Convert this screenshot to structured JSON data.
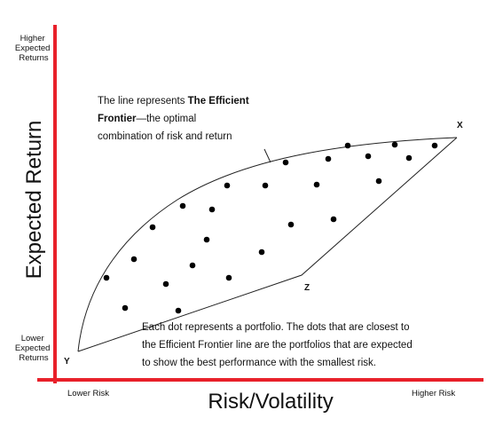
{
  "axes": {
    "y_title": "Expected Return",
    "y_top_label": [
      "Higher",
      "Expected",
      "Returns"
    ],
    "y_bottom_label": [
      "Lower",
      "Expected",
      "Returns"
    ],
    "x_title": "Risk/Volatility",
    "x_left_label": "Lower Risk",
    "x_right_label": "Higher Risk"
  },
  "points": {
    "x": "X",
    "y": "Y",
    "z": "Z"
  },
  "frontier_note": {
    "line1_plain": "The line represents ",
    "line1_bold": "The Efficient",
    "line2_bold": "Frontier",
    "line2_plain": "—the optimal",
    "line3": "combination of risk and return"
  },
  "dots_note": [
    "Each dot represents a portfolio. The dots that are closest to",
    "the Efficient Frontier line are the portfolios that are expected",
    "to show the best performance with the smallest risk."
  ]
}
